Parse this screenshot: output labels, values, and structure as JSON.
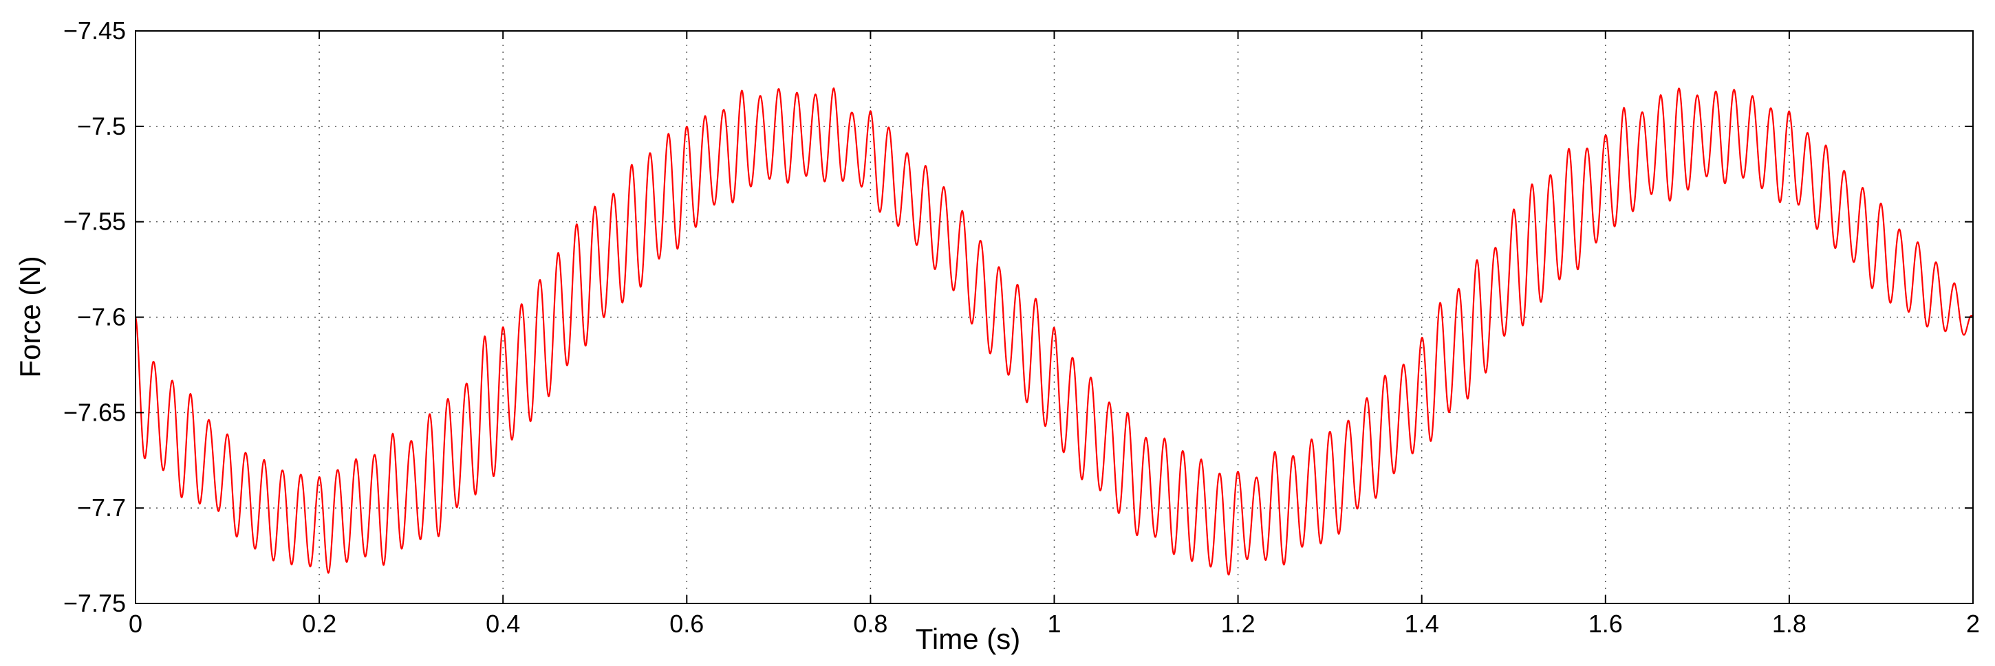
{
  "chart_data": {
    "type": "line",
    "title": "",
    "xlabel": "Time (s)",
    "ylabel": "Force (N)",
    "xlim": [
      0,
      2
    ],
    "ylim": [
      -7.75,
      -7.45
    ],
    "xticks": [
      0,
      0.2,
      0.4,
      0.6,
      0.8,
      1,
      1.2,
      1.4,
      1.6,
      1.8,
      2
    ],
    "xtick_labels": [
      "0",
      "0.2",
      "0.4",
      "0.6",
      "0.8",
      "1",
      "1.2",
      "1.4",
      "1.6",
      "1.8",
      "2"
    ],
    "yticks": [
      -7.45,
      -7.5,
      -7.55,
      -7.6,
      -7.65,
      -7.7,
      -7.75
    ],
    "ytick_labels": [
      "−7.45",
      "−7.5",
      "−7.55",
      "−7.6",
      "−7.65",
      "−7.7",
      "−7.75"
    ],
    "grid": true,
    "legend": false,
    "series": [
      {
        "color": "#ff0000",
        "x": [
          0,
          0.02,
          0.04,
          0.06,
          0.08,
          0.1,
          0.12,
          0.14,
          0.16,
          0.18,
          0.2,
          0.22,
          0.24,
          0.26,
          0.28,
          0.3,
          0.32,
          0.34,
          0.36,
          0.38,
          0.4,
          0.42,
          0.44,
          0.46,
          0.48,
          0.5,
          0.52,
          0.54,
          0.56,
          0.58,
          0.6,
          0.62,
          0.64,
          0.66,
          0.68,
          0.7,
          0.72,
          0.74,
          0.76,
          0.78,
          0.8,
          0.82,
          0.84,
          0.86,
          0.88,
          0.9,
          0.92,
          0.94,
          0.96,
          0.98,
          1,
          1.02,
          1.04,
          1.06,
          1.08,
          1.1,
          1.12,
          1.14,
          1.16,
          1.18,
          1.2,
          1.22,
          1.24,
          1.26,
          1.28,
          1.3,
          1.32,
          1.34,
          1.36,
          1.38,
          1.4,
          1.42,
          1.44,
          1.46,
          1.48,
          1.5,
          1.52,
          1.54,
          1.56,
          1.58,
          1.6,
          1.62,
          1.64,
          1.66,
          1.68,
          1.7,
          1.72,
          1.74,
          1.76,
          1.78,
          1.8,
          1.82,
          1.84,
          1.86,
          1.88,
          1.9,
          1.92,
          1.94,
          1.96,
          1.98,
          2
        ],
        "y_min": [
          -7.67,
          -7.68,
          -7.69,
          -7.7,
          -7.7,
          -7.71,
          -7.72,
          -7.73,
          -7.73,
          -7.73,
          -7.74,
          -7.73,
          -7.73,
          -7.73,
          -7.73,
          -7.72,
          -7.72,
          -7.71,
          -7.7,
          -7.69,
          -7.68,
          -7.66,
          -7.65,
          -7.64,
          -7.62,
          -7.61,
          -7.6,
          -7.59,
          -7.58,
          -7.57,
          -7.56,
          -7.55,
          -7.54,
          -7.54,
          -7.53,
          -7.53,
          -7.53,
          -7.53,
          -7.53,
          -7.53,
          -7.54,
          -7.55,
          -7.56,
          -7.57,
          -7.58,
          -7.6,
          -7.61,
          -7.63,
          -7.64,
          -7.65,
          -7.67,
          -7.68,
          -7.69,
          -7.7,
          -7.71,
          -7.72,
          -7.72,
          -7.73,
          -7.73,
          -7.74,
          -7.73,
          -7.73,
          -7.73,
          -7.73,
          -7.72,
          -7.72,
          -7.71,
          -7.7,
          -7.69,
          -7.68,
          -7.67,
          -7.66,
          -7.65,
          -7.64,
          -7.62,
          -7.61,
          -7.6,
          -7.59,
          -7.58,
          -7.57,
          -7.56,
          -7.55,
          -7.54,
          -7.54,
          -7.54,
          -7.53,
          -7.53,
          -7.53,
          -7.53,
          -7.54,
          -7.54,
          -7.55,
          -7.56,
          -7.57,
          -7.58,
          -7.59,
          -7.6,
          -7.6,
          -7.61,
          -7.61,
          -7.61
        ],
        "y_max": [
          -7.6,
          -7.62,
          -7.63,
          -7.64,
          -7.65,
          -7.66,
          -7.67,
          -7.67,
          -7.68,
          -7.68,
          -7.68,
          -7.68,
          -7.67,
          -7.67,
          -7.66,
          -7.66,
          -7.65,
          -7.64,
          -7.63,
          -7.61,
          -7.6,
          -7.59,
          -7.58,
          -7.56,
          -7.55,
          -7.54,
          -7.53,
          -7.52,
          -7.51,
          -7.5,
          -7.5,
          -7.49,
          -7.49,
          -7.48,
          -7.48,
          -7.48,
          -7.48,
          -7.48,
          -7.48,
          -7.49,
          -7.49,
          -7.5,
          -7.51,
          -7.52,
          -7.53,
          -7.54,
          -7.56,
          -7.57,
          -7.58,
          -7.59,
          -7.6,
          -7.62,
          -7.63,
          -7.64,
          -7.65,
          -7.66,
          -7.66,
          -7.67,
          -7.67,
          -7.68,
          -7.68,
          -7.68,
          -7.67,
          -7.67,
          -7.66,
          -7.66,
          -7.65,
          -7.64,
          -7.63,
          -7.62,
          -7.61,
          -7.59,
          -7.58,
          -7.57,
          -7.56,
          -7.54,
          -7.53,
          -7.52,
          -7.51,
          -7.51,
          -7.5,
          -7.49,
          -7.49,
          -7.48,
          -7.48,
          -7.48,
          -7.48,
          -7.48,
          -7.48,
          -7.49,
          -7.49,
          -7.5,
          -7.51,
          -7.52,
          -7.53,
          -7.54,
          -7.55,
          -7.56,
          -7.57,
          -7.58,
          -7.6
        ]
      }
    ]
  }
}
